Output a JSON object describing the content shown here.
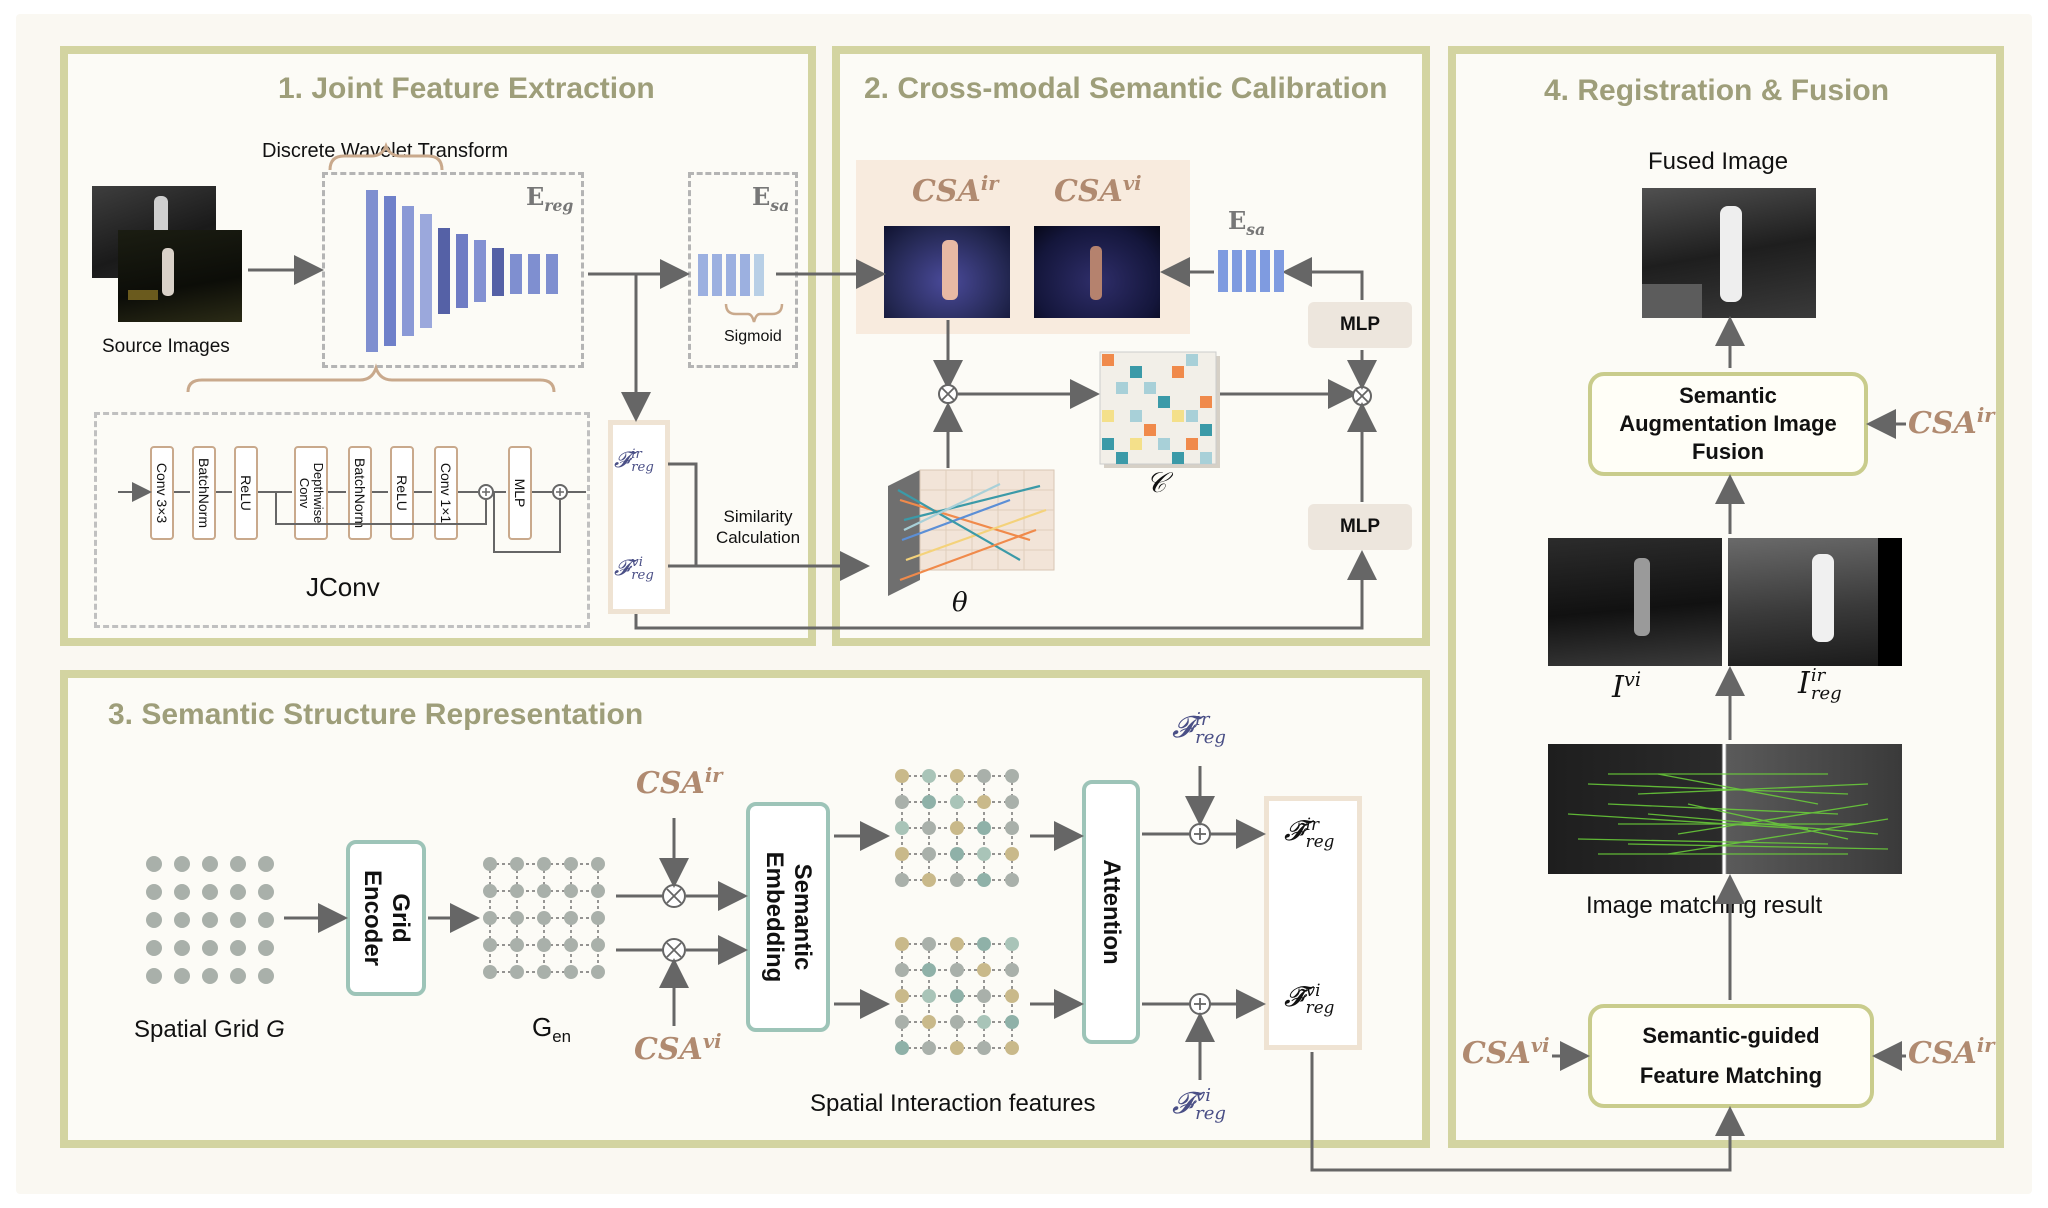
{
  "panels": {
    "p1_title": "1. Joint Feature Extraction",
    "p2_title": "2. Cross-modal Semantic Calibration",
    "p3_title": "3. Semantic Structure Representation",
    "p4_title": "4. Registration & Fusion"
  },
  "p1": {
    "dwt_label": "Discrete Wavelet Transform",
    "ereg_main": "E",
    "ereg_sub": "reg",
    "esa_main": "E",
    "esa_sub": "sa",
    "source_images": "Source Images",
    "sigmoid": "Sigmoid",
    "jconv_label": "JConv",
    "jconv_blocks": [
      "Conv 3×3",
      "BatchNorm",
      "ReLU",
      "Depthwise Conv",
      "BatchNorm",
      "ReLU",
      "Conv 1×1",
      "MLP"
    ],
    "f_main": "𝓕",
    "f_ir_sup": "ir",
    "f_vi_sup": "vi",
    "f_sub": "reg",
    "similarity": "Similarity Calculation"
  },
  "p2": {
    "csa_main": "CSA",
    "ir_sup": "ir",
    "vi_sup": "vi",
    "esa_main": "E",
    "esa_sub": "sa",
    "mlp_top": "MLP",
    "mlp_bottom": "MLP",
    "c_label": "𝒞",
    "theta_label": "θ"
  },
  "p3": {
    "spatial_grid": "Spatial Grid",
    "spatial_grid_var": "G",
    "grid_encoder": "Grid Encoder",
    "gen_main": "G",
    "gen_sub": "en",
    "csa_main": "CSA",
    "ir_sup": "ir",
    "vi_sup": "vi",
    "semantic_embedding": "Semantic Embedding",
    "attention": "Attention",
    "spatial_interaction": "Spatial Interaction features",
    "f_main": "𝓕",
    "ft_main": "𝓕̃",
    "f_sub": "reg"
  },
  "p4": {
    "fused_image": "Fused Image",
    "sa_fusion": "Semantic Augmentation Image Fusion",
    "csa_main": "CSA",
    "ir_sup": "ir",
    "vi_sup": "vi",
    "i_main": "I",
    "i_reg_sub": "reg",
    "matching_result": "Image matching result",
    "feature_matching": "Semantic-guided Feature Matching"
  },
  "colors": {
    "panel_border": "#d3d4a1",
    "csa": "#b08a70",
    "feature": "#4a4f86",
    "teal_box": "#9dc4b8",
    "encoder_bars": "#7f8fd0"
  }
}
